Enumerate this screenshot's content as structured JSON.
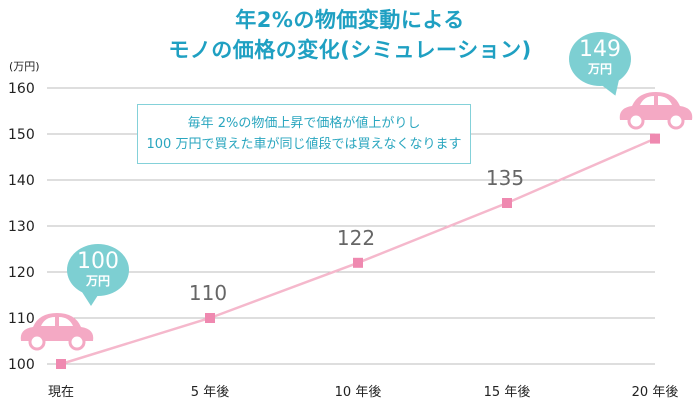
{
  "title": {
    "line1": "年2%の物価変動による",
    "line2": "モノの価格の変化(シミュレーション)"
  },
  "note": {
    "line1": "毎年 2%の物価上昇で価格が値上がりし",
    "line2": "100 万円で買えた車が同じ値段では買えなくなります"
  },
  "callouts": {
    "start": {
      "value": "100",
      "unit": "万円"
    },
    "end": {
      "value": "149",
      "unit": "万円"
    }
  },
  "colors": {
    "title": "#1fa0c2",
    "line": "#f5b8cc",
    "marker": "#ef89b0",
    "bubble": "#7dcfd2",
    "car": "#f4a9c4"
  },
  "chart_data": {
    "type": "line",
    "ylabel": "(万円)",
    "xlabel": "",
    "categories": [
      "現在",
      "5 年後",
      "10 年後",
      "15 年後",
      "20 年後"
    ],
    "values": [
      100,
      110,
      122,
      135,
      149
    ],
    "data_labels": [
      "",
      "110",
      "122",
      "135",
      ""
    ],
    "ylim": [
      100,
      160
    ],
    "yticks": [
      100,
      110,
      120,
      130,
      140,
      150,
      160
    ],
    "grid": true,
    "legend": "none"
  }
}
